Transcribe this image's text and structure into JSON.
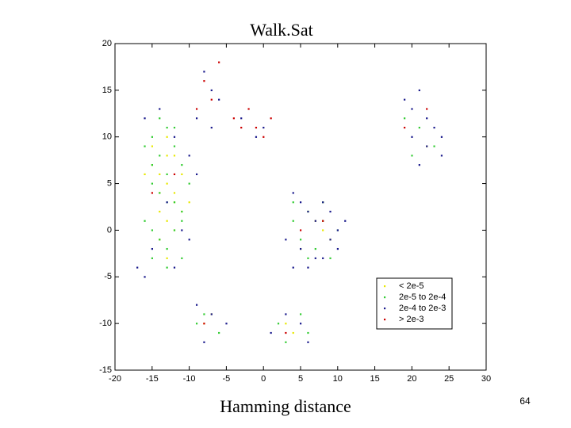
{
  "chart_data": {
    "type": "scatter",
    "title": "Walk.Sat",
    "xlabel": "Hamming distance",
    "xlim": [
      -20,
      30
    ],
    "ylim": [
      -15,
      20
    ],
    "xticks": [
      -20,
      -15,
      -10,
      -5,
      0,
      5,
      10,
      15,
      20,
      25,
      30
    ],
    "yticks": [
      -15,
      -10,
      -5,
      0,
      5,
      10,
      15,
      20
    ],
    "legend": "lower right",
    "series": [
      {
        "name": "< 2e-5",
        "color": "#e8e800",
        "x": [
          -15,
          -14,
          -13,
          -12,
          -14,
          -13,
          -12,
          -11,
          -15,
          -13,
          -12,
          -14,
          -11,
          -13,
          -12,
          -16,
          -14,
          -10,
          7,
          8,
          6,
          9,
          5,
          8,
          -8,
          -7,
          3,
          4,
          22,
          -13
        ],
        "y": [
          7,
          6,
          5,
          4,
          2,
          1,
          3,
          6,
          9,
          8,
          0,
          -1,
          2,
          -3,
          8,
          6,
          4,
          3,
          1,
          0,
          2,
          -1,
          -2,
          3,
          -10,
          -9,
          -10,
          -11,
          9,
          10
        ]
      },
      {
        "name": "2e-5 to 2e-4",
        "color": "#33cc33",
        "x": [
          -16,
          -15,
          -14,
          -13,
          -12,
          -11,
          -10,
          -15,
          -14,
          -13,
          -12,
          -11,
          -16,
          -15,
          -14,
          -13,
          -12,
          -11,
          -15,
          -13,
          -11,
          -14,
          -12,
          -15,
          -13,
          4,
          6,
          8,
          10,
          5,
          7,
          9,
          4,
          6,
          8,
          -8,
          -6,
          -9,
          2,
          3,
          5,
          6,
          19,
          21,
          23,
          20
        ],
        "y": [
          9,
          10,
          8,
          11,
          9,
          7,
          5,
          5,
          4,
          6,
          3,
          2,
          1,
          0,
          -1,
          -2,
          0,
          1,
          -3,
          -4,
          -3,
          12,
          11,
          7,
          3,
          3,
          2,
          1,
          0,
          -1,
          -2,
          -3,
          1,
          -3,
          3,
          -9,
          -11,
          -10,
          -10,
          -12,
          -9,
          -11,
          12,
          11,
          9,
          8
        ]
      },
      {
        "name": "2e-4 to 2e-3",
        "color": "#1a1a8c",
        "x": [
          -16,
          -14,
          -12,
          -10,
          -9,
          -13,
          -11,
          -15,
          -12,
          -10,
          -17,
          -16,
          -8,
          -7,
          -6,
          -9,
          -7,
          -3,
          -1,
          0,
          4,
          5,
          6,
          7,
          8,
          9,
          10,
          3,
          5,
          7,
          9,
          11,
          4,
          6,
          8,
          10,
          -9,
          -7,
          -5,
          -8,
          1,
          3,
          5,
          6,
          19,
          20,
          21,
          22,
          23,
          24,
          20,
          22,
          24,
          21
        ],
        "y": [
          12,
          13,
          10,
          8,
          6,
          3,
          0,
          -2,
          -4,
          -1,
          -4,
          -5,
          17,
          15,
          14,
          12,
          11,
          12,
          10,
          11,
          4,
          3,
          2,
          1,
          3,
          2,
          0,
          -1,
          -2,
          -3,
          -1,
          1,
          -4,
          -4,
          -3,
          -2,
          -8,
          -9,
          -10,
          -12,
          -11,
          -9,
          -10,
          -12,
          14,
          13,
          15,
          12,
          11,
          10,
          10,
          9,
          8,
          7
        ]
      },
      {
        "name": "> 2e-3",
        "color": "#cc0000",
        "x": [
          -8,
          -6,
          -9,
          -7,
          -4,
          -2,
          -1,
          0,
          -3,
          1,
          5,
          8,
          -15,
          -12,
          19,
          22,
          -8,
          3
        ],
        "y": [
          16,
          18,
          13,
          14,
          12,
          13,
          11,
          10,
          11,
          12,
          0,
          1,
          4,
          6,
          11,
          13,
          -10,
          -11
        ]
      }
    ]
  },
  "page_number": "64"
}
